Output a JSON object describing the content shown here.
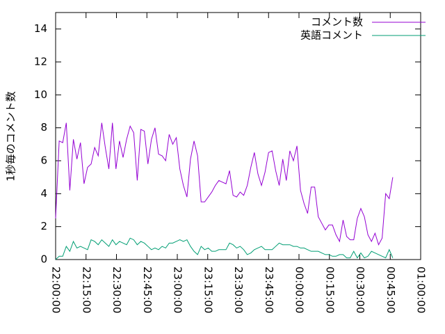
{
  "chart_data": {
    "type": "line",
    "y_label": "1秒毎のコメント数",
    "x": [
      0,
      1.75,
      3.5,
      5.25,
      7,
      8.75,
      10.5,
      12.25,
      14,
      15.75,
      17.5,
      19.25,
      21,
      22.75,
      24.5,
      26.25,
      28,
      29.75,
      31.5,
      33.25,
      35,
      36.75,
      38.5,
      40.25,
      42,
      43.75,
      45.5,
      47.25,
      49,
      50.75,
      52.5,
      54.25,
      56,
      57.75,
      59.5,
      61.25,
      63,
      64.75,
      66.5,
      68.25,
      70,
      71.75,
      73.5,
      75.25,
      77,
      78.75,
      80.5,
      82.25,
      84,
      85.75,
      87.5,
      89.25,
      91,
      92.75,
      94.5,
      96.25,
      98,
      99.75,
      101.5,
      103.25,
      105,
      106.75,
      108.5,
      110.25,
      112,
      113.75,
      115.5,
      117.25,
      119,
      120.75,
      122.5,
      124.25,
      126,
      127.75,
      129.5,
      131.25,
      133,
      134.75,
      136.5,
      138.25,
      140,
      141.75,
      143.5,
      145.25,
      147,
      148.75,
      150.5,
      152.25,
      154,
      155.75,
      157.5,
      159.25,
      161,
      162.75,
      164.5,
      166.25
    ],
    "series": [
      {
        "name": "コメント数",
        "color": "#9400d3",
        "values": [
          2.5,
          7.2,
          7.1,
          8.3,
          4.2,
          7.3,
          6.1,
          7.1,
          4.6,
          5.6,
          5.8,
          6.8,
          6.3,
          8.3,
          6.8,
          5.5,
          8.3,
          5.5,
          7.2,
          6.2,
          7.3,
          8.1,
          7.7,
          4.8,
          7.9,
          7.8,
          5.8,
          7.3,
          8.0,
          6.4,
          6.3,
          6.0,
          7.6,
          7.0,
          7.4,
          5.5,
          4.5,
          3.8,
          6.1,
          7.2,
          6.3,
          3.5,
          3.5,
          3.8,
          4.1,
          4.5,
          4.8,
          4.7,
          4.6,
          5.4,
          3.9,
          3.8,
          4.1,
          3.9,
          4.5,
          5.6,
          6.5,
          5.2,
          4.5,
          5.3,
          6.5,
          6.6,
          5.4,
          4.5,
          6.1,
          4.8,
          6.6,
          6.0,
          6.9,
          4.2,
          3.4,
          2.8,
          4.4,
          4.4,
          2.6,
          2.2,
          1.8,
          2.1,
          2.1,
          1.5,
          1.1,
          2.4,
          1.4,
          1.2,
          1.2,
          2.5,
          3.1,
          2.6,
          1.5,
          1.1,
          1.6,
          0.9,
          1.3,
          4.0,
          3.7,
          5.0
        ]
      },
      {
        "name": "英語コメント",
        "color": "#009e73",
        "values": [
          0,
          0.2,
          0.2,
          0.8,
          0.5,
          1.1,
          0.7,
          0.8,
          0.7,
          0.6,
          1.2,
          1.1,
          0.9,
          1.2,
          1.0,
          0.8,
          1.2,
          0.9,
          1.1,
          1.0,
          0.9,
          1.3,
          1.2,
          0.9,
          1.1,
          1.0,
          0.8,
          0.6,
          0.7,
          0.6,
          0.8,
          0.7,
          1.0,
          1.0,
          1.1,
          1.2,
          1.1,
          1.2,
          0.8,
          0.5,
          0.3,
          0.8,
          0.6,
          0.7,
          0.5,
          0.5,
          0.6,
          0.6,
          0.6,
          1.0,
          0.9,
          0.7,
          0.8,
          0.6,
          0.3,
          0.4,
          0.6,
          0.7,
          0.8,
          0.6,
          0.6,
          0.6,
          0.8,
          1.0,
          0.9,
          0.9,
          0.9,
          0.8,
          0.8,
          0.7,
          0.7,
          0.6,
          0.5,
          0.5,
          0.5,
          0.4,
          0.3,
          0.3,
          0.2,
          0.2,
          0.3,
          0.3,
          0.1,
          0.1,
          0.5,
          0.1,
          0.4,
          0.1,
          0.2,
          0.5,
          0.4,
          0.3,
          0.2,
          0.1,
          0.6,
          0.1
        ]
      }
    ],
    "xlim": [
      0,
      180
    ],
    "xticks": [
      {
        "value": 0,
        "label": "22:00:00"
      },
      {
        "value": 15,
        "label": "22:15:00"
      },
      {
        "value": 30,
        "label": "22:30:00"
      },
      {
        "value": 45,
        "label": "22:45:00"
      },
      {
        "value": 60,
        "label": "23:00:00"
      },
      {
        "value": 75,
        "label": "23:15:00"
      },
      {
        "value": 90,
        "label": "23:30:00"
      },
      {
        "value": 105,
        "label": "23:45:00"
      },
      {
        "value": 120,
        "label": "00:00:00"
      },
      {
        "value": 135,
        "label": "00:15:00"
      },
      {
        "value": 150,
        "label": "00:30:00"
      },
      {
        "value": 165,
        "label": "00:45:00"
      },
      {
        "value": 180,
        "label": "01:00:00"
      }
    ],
    "ylim": [
      0,
      15
    ],
    "yticks": [
      0,
      2,
      4,
      6,
      8,
      10,
      12,
      14
    ],
    "legend": "top-right"
  }
}
